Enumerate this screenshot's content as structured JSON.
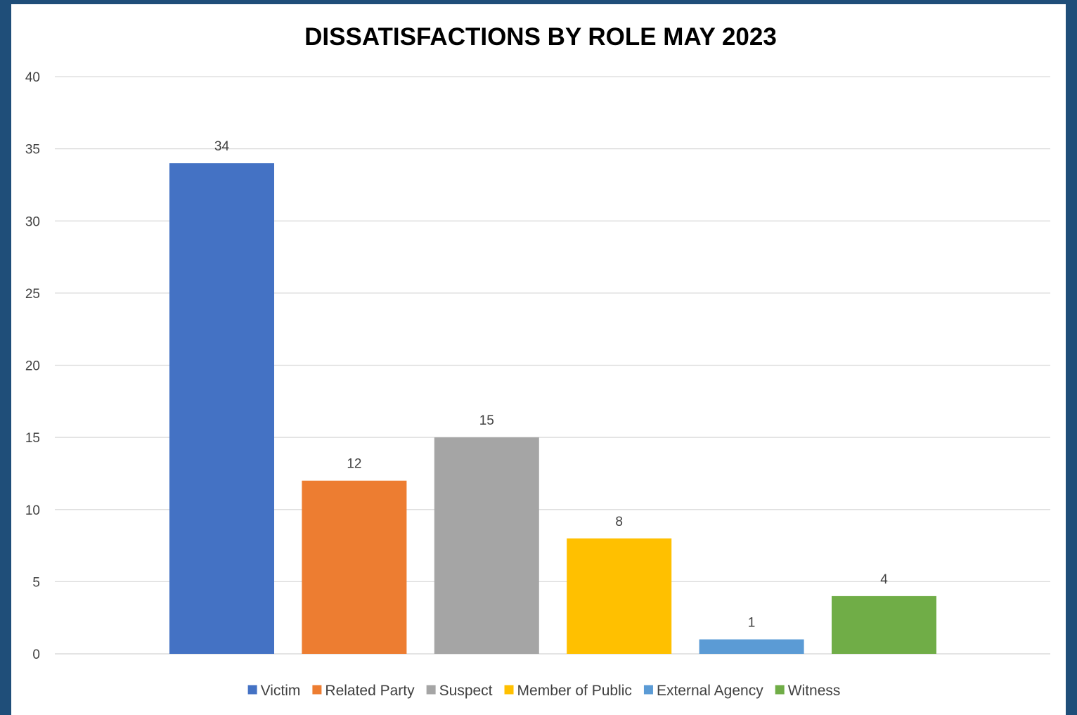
{
  "chart_data": {
    "type": "bar",
    "title": "DISSATISFACTIONS BY ROLE MAY 2023",
    "xlabel": "",
    "ylabel": "",
    "ylim": [
      0,
      40
    ],
    "y_ticks": [
      0,
      5,
      10,
      15,
      20,
      25,
      30,
      35,
      40
    ],
    "grid": true,
    "legend_position": "bottom",
    "series": [
      {
        "name": "Victim",
        "value": 34,
        "color": "#4472c4"
      },
      {
        "name": "Related Party",
        "value": 12,
        "color": "#ed7d31"
      },
      {
        "name": "Suspect",
        "value": 15,
        "color": "#a5a5a5"
      },
      {
        "name": "Member of Public",
        "value": 8,
        "color": "#ffc000"
      },
      {
        "name": "External Agency",
        "value": 1,
        "color": "#5b9bd5"
      },
      {
        "name": "Witness",
        "value": 4,
        "color": "#70ad47"
      }
    ]
  }
}
